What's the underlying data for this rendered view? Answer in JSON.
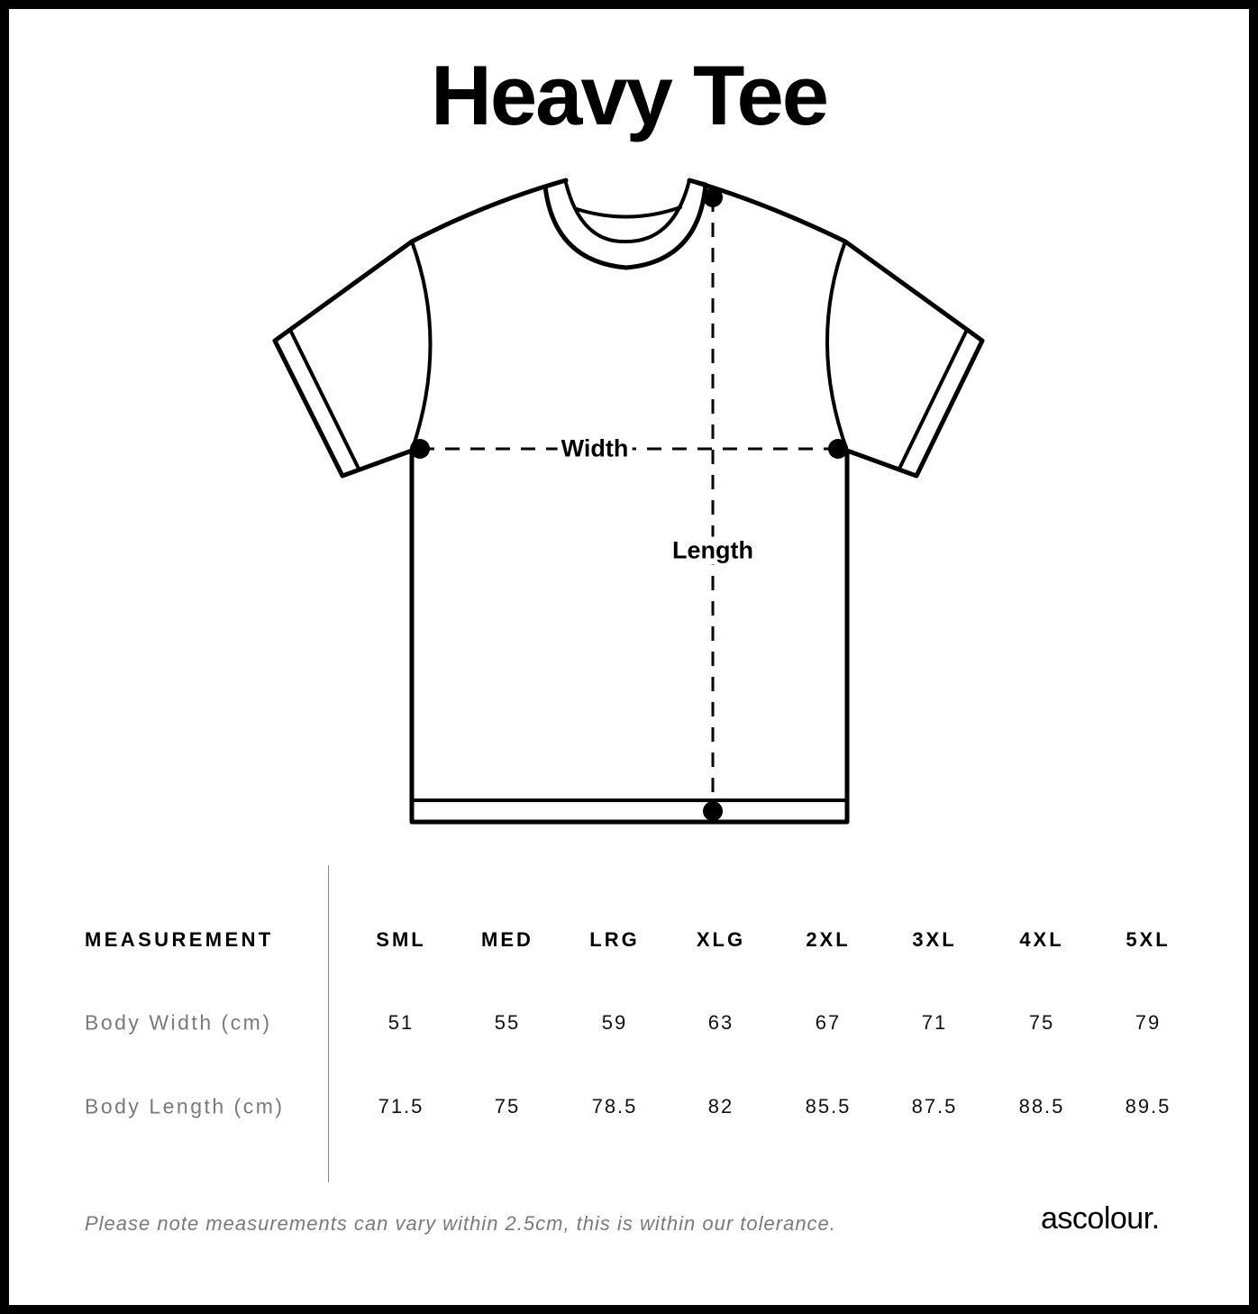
{
  "title": "Heavy Tee",
  "diagram": {
    "width_label": "Width",
    "length_label": "Length"
  },
  "table": {
    "header_label": "MEASUREMENT",
    "sizes": [
      "SML",
      "MED",
      "LRG",
      "XLG",
      "2XL",
      "3XL",
      "4XL",
      "5XL"
    ],
    "rows": [
      {
        "label": "Body Width (cm)",
        "values": [
          "51",
          "55",
          "59",
          "63",
          "67",
          "71",
          "75",
          "79"
        ]
      },
      {
        "label": "Body Length (cm)",
        "values": [
          "71.5",
          "75",
          "78.5",
          "82",
          "85.5",
          "87.5",
          "88.5",
          "89.5"
        ]
      }
    ]
  },
  "note": "Please note measurements can vary within 2.5cm, this is within our tolerance.",
  "brand": "ascolour."
}
